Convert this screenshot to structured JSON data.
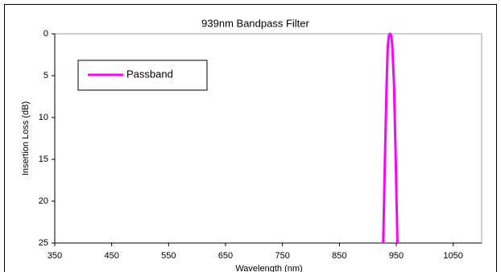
{
  "chart_data": {
    "type": "line",
    "title": "939nm Bandpass Filter",
    "x_label": "Wavelength (nm)",
    "y_label": "Insertion Loss (dB)",
    "x": [
      927,
      930,
      933,
      935,
      937,
      939,
      941,
      943,
      946,
      949,
      952
    ],
    "series": [
      {
        "name": "Passband",
        "color": "#ff00ff",
        "values": [
          25,
          15,
          6,
          1.5,
          0.2,
          0,
          0.2,
          1.5,
          6,
          15,
          25
        ]
      }
    ],
    "xlim": [
      350,
      1100
    ],
    "xticks": [
      350,
      450,
      550,
      650,
      750,
      850,
      950,
      1050
    ],
    "ylim": [
      0,
      25
    ],
    "yticks": [
      0,
      5,
      10,
      15,
      20,
      25
    ],
    "y_reversed": true,
    "grid": false,
    "legend": "upper left"
  }
}
